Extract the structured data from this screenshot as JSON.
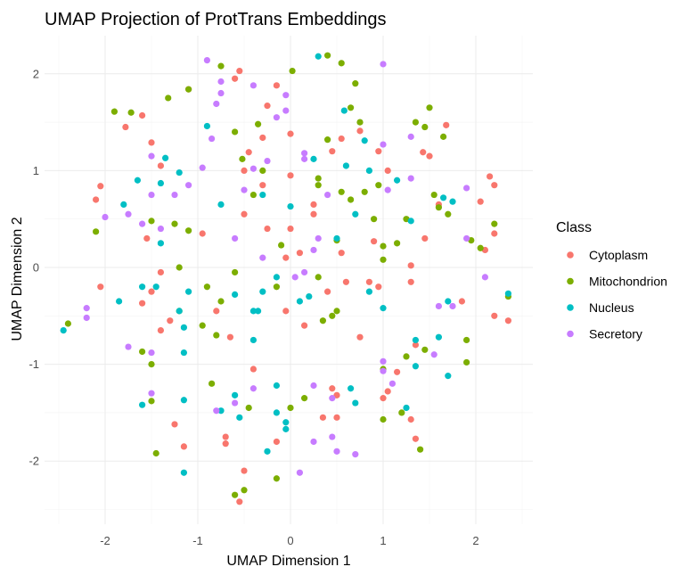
{
  "chart_data": {
    "type": "scatter",
    "title": "UMAP Projection of ProtTrans Embeddings",
    "xlabel": "UMAP Dimension 1",
    "ylabel": "UMAP Dimension 2",
    "xlim": [
      -2.5,
      2.4
    ],
    "ylim": [
      -2.5,
      2.25
    ],
    "x_ticks": [
      -2,
      -1,
      0,
      1,
      2
    ],
    "y_ticks": [
      2,
      1,
      0,
      -1,
      -2
    ],
    "grid": true,
    "legend": {
      "title": "Class",
      "position": "right"
    },
    "series": [
      {
        "name": "Cytoplasm",
        "color": "#F8766D",
        "points": [
          [
            -0.55,
            2.03
          ],
          [
            -0.6,
            1.95
          ],
          [
            -1.1,
            1.84
          ],
          [
            -1.6,
            1.57
          ],
          [
            -1.78,
            1.45
          ],
          [
            -1.5,
            1.29
          ],
          [
            -1.4,
            1.05
          ],
          [
            -2.05,
            0.84
          ],
          [
            -2.1,
            0.7
          ],
          [
            -0.15,
            1.88
          ],
          [
            0.0,
            1.38
          ],
          [
            -0.3,
            1.34
          ],
          [
            -0.45,
            1.19
          ],
          [
            -0.5,
            1.0
          ],
          [
            -0.3,
            0.85
          ],
          [
            0.0,
            0.95
          ],
          [
            0.25,
            0.65
          ],
          [
            0.25,
            0.55
          ],
          [
            0.45,
            1.2
          ],
          [
            0.55,
            1.33
          ],
          [
            0.75,
            1.41
          ],
          [
            0.95,
            1.2
          ],
          [
            1.05,
            1.0
          ],
          [
            1.43,
            1.19
          ],
          [
            1.5,
            1.15
          ],
          [
            1.68,
            1.47
          ],
          [
            2.15,
            0.94
          ],
          [
            2.2,
            0.85
          ],
          [
            1.6,
            0.65
          ],
          [
            2.05,
            0.68
          ],
          [
            2.2,
            0.35
          ],
          [
            2.1,
            0.18
          ],
          [
            1.85,
            -0.35
          ],
          [
            2.2,
            -0.5
          ],
          [
            2.35,
            -0.55
          ],
          [
            1.3,
            -0.15
          ],
          [
            0.6,
            -0.15
          ],
          [
            0.9,
            0.27
          ],
          [
            0.1,
            0.15
          ],
          [
            -0.05,
            0.1
          ],
          [
            -0.5,
            0.55
          ],
          [
            -0.25,
            0.4
          ],
          [
            -0.95,
            0.35
          ],
          [
            -1.55,
            0.3
          ],
          [
            -1.5,
            -0.25
          ],
          [
            -1.6,
            -0.37
          ],
          [
            -2.05,
            -0.2
          ],
          [
            -1.3,
            -0.55
          ],
          [
            -0.8,
            -0.45
          ],
          [
            -0.65,
            -0.72
          ],
          [
            -1.4,
            -0.65
          ],
          [
            -0.4,
            -1.05
          ],
          [
            -0.05,
            -0.45
          ],
          [
            0.15,
            -0.6
          ],
          [
            0.45,
            -1.25
          ],
          [
            0.5,
            -1.32
          ],
          [
            0.5,
            -1.55
          ],
          [
            0.35,
            -1.55
          ],
          [
            -0.15,
            -1.8
          ],
          [
            -0.7,
            -1.75
          ],
          [
            -0.7,
            -1.82
          ],
          [
            -1.25,
            -1.62
          ],
          [
            -1.15,
            -1.85
          ],
          [
            -0.5,
            -2.1
          ],
          [
            -0.55,
            -2.42
          ],
          [
            1.0,
            -1.35
          ],
          [
            1.05,
            -1.28
          ],
          [
            1.3,
            -1.57
          ],
          [
            1.35,
            -1.77
          ],
          [
            1.15,
            -1.08
          ],
          [
            1.35,
            -0.8
          ],
          [
            0.75,
            -0.72
          ],
          [
            0.85,
            -0.15
          ],
          [
            0.4,
            -0.25
          ],
          [
            -1.4,
            -0.05
          ],
          [
            0.0,
            0.4
          ],
          [
            0.55,
            0.15
          ],
          [
            0.95,
            -0.2
          ],
          [
            -0.25,
            1.67
          ],
          [
            1.3,
            0.02
          ],
          [
            1.45,
            0.3
          ]
        ]
      },
      {
        "name": "Mitochondrion",
        "color": "#7CAE00",
        "points": [
          [
            -1.9,
            1.61
          ],
          [
            -1.72,
            1.6
          ],
          [
            -1.32,
            1.75
          ],
          [
            -1.1,
            1.84
          ],
          [
            -0.75,
            2.08
          ],
          [
            -0.52,
            1.12
          ],
          [
            -0.6,
            1.4
          ],
          [
            -0.35,
            1.48
          ],
          [
            0.02,
            2.03
          ],
          [
            0.4,
            2.19
          ],
          [
            0.55,
            2.11
          ],
          [
            0.7,
            1.9
          ],
          [
            0.4,
            1.32
          ],
          [
            0.65,
            1.65
          ],
          [
            0.75,
            1.5
          ],
          [
            0.3,
            0.92
          ],
          [
            0.3,
            0.85
          ],
          [
            0.55,
            0.78
          ],
          [
            0.65,
            0.7
          ],
          [
            0.9,
            0.5
          ],
          [
            1.0,
            0.22
          ],
          [
            1.0,
            0.08
          ],
          [
            1.15,
            0.25
          ],
          [
            1.25,
            0.5
          ],
          [
            1.45,
            1.45
          ],
          [
            1.5,
            1.65
          ],
          [
            1.35,
            1.5
          ],
          [
            1.65,
            1.35
          ],
          [
            1.55,
            0.75
          ],
          [
            1.6,
            0.62
          ],
          [
            1.7,
            0.55
          ],
          [
            1.95,
            0.28
          ],
          [
            2.2,
            0.45
          ],
          [
            2.05,
            0.2
          ],
          [
            2.35,
            -0.3
          ],
          [
            1.9,
            -0.75
          ],
          [
            1.9,
            -0.98
          ],
          [
            1.45,
            -0.85
          ],
          [
            1.25,
            -0.92
          ],
          [
            1.0,
            -1.05
          ],
          [
            1.0,
            -1.57
          ],
          [
            1.4,
            -1.88
          ],
          [
            1.2,
            -1.5
          ],
          [
            0.5,
            -0.45
          ],
          [
            0.45,
            -0.5
          ],
          [
            0.3,
            -0.1
          ],
          [
            0.35,
            -0.55
          ],
          [
            0.15,
            -1.35
          ],
          [
            0.0,
            -1.45
          ],
          [
            -0.15,
            -2.18
          ],
          [
            -0.5,
            -2.3
          ],
          [
            -0.6,
            -2.35
          ],
          [
            -0.45,
            -1.45
          ],
          [
            -0.85,
            -1.2
          ],
          [
            -0.75,
            -0.35
          ],
          [
            -0.9,
            -0.2
          ],
          [
            -0.6,
            -0.05
          ],
          [
            -0.95,
            -0.6
          ],
          [
            -0.8,
            -0.7
          ],
          [
            -1.2,
            -0.45
          ],
          [
            -1.5,
            -1.0
          ],
          [
            -1.5,
            -1.38
          ],
          [
            -1.45,
            -1.92
          ],
          [
            -1.6,
            -0.87
          ],
          [
            -2.1,
            0.37
          ],
          [
            -2.4,
            -0.58
          ],
          [
            -1.1,
            0.38
          ],
          [
            -1.25,
            0.45
          ],
          [
            -1.5,
            0.48
          ],
          [
            -1.2,
            0.0
          ],
          [
            -0.15,
            -0.2
          ],
          [
            -0.1,
            0.23
          ],
          [
            0.5,
            0.28
          ],
          [
            0.8,
            0.78
          ],
          [
            0.95,
            0.85
          ],
          [
            -0.4,
            0.75
          ],
          [
            -0.3,
            1.0
          ]
        ]
      },
      {
        "name": "Nucleus",
        "color": "#00BFC4",
        "points": [
          [
            0.3,
            2.18
          ],
          [
            0.58,
            1.62
          ],
          [
            0.8,
            1.31
          ],
          [
            0.85,
            1.0
          ],
          [
            0.6,
            1.05
          ],
          [
            0.25,
            1.12
          ],
          [
            -0.9,
            1.46
          ],
          [
            -1.35,
            1.13
          ],
          [
            -1.2,
            0.98
          ],
          [
            -1.4,
            0.87
          ],
          [
            -1.8,
            0.65
          ],
          [
            -1.65,
            0.9
          ],
          [
            -0.75,
            0.65
          ],
          [
            -0.3,
            0.75
          ],
          [
            0.0,
            0.63
          ],
          [
            0.7,
            0.55
          ],
          [
            1.15,
            0.9
          ],
          [
            1.3,
            0.48
          ],
          [
            1.65,
            0.72
          ],
          [
            1.75,
            0.68
          ],
          [
            2.35,
            -0.27
          ],
          [
            1.7,
            -0.35
          ],
          [
            1.6,
            -0.72
          ],
          [
            1.35,
            -0.75
          ],
          [
            1.35,
            -1.02
          ],
          [
            1.7,
            -1.12
          ],
          [
            1.25,
            -1.45
          ],
          [
            0.7,
            -1.4
          ],
          [
            0.65,
            -1.25
          ],
          [
            0.85,
            -0.25
          ],
          [
            1.0,
            -0.42
          ],
          [
            0.2,
            -0.3
          ],
          [
            0.1,
            -0.35
          ],
          [
            -0.15,
            -0.1
          ],
          [
            -0.3,
            -0.25
          ],
          [
            -0.35,
            -0.45
          ],
          [
            -0.4,
            -0.75
          ],
          [
            -0.6,
            -0.28
          ],
          [
            -1.1,
            -0.25
          ],
          [
            -1.2,
            -0.45
          ],
          [
            -1.15,
            -0.62
          ],
          [
            -1.45,
            -0.2
          ],
          [
            -1.6,
            -0.2
          ],
          [
            -1.85,
            -0.35
          ],
          [
            -2.45,
            -0.65
          ],
          [
            -1.15,
            -0.88
          ],
          [
            -1.15,
            -1.37
          ],
          [
            -0.6,
            -1.32
          ],
          [
            -0.75,
            -1.48
          ],
          [
            -0.55,
            -1.55
          ],
          [
            -0.15,
            -1.22
          ],
          [
            -0.15,
            -1.5
          ],
          [
            -0.05,
            -1.6
          ],
          [
            -0.05,
            -1.67
          ],
          [
            -0.25,
            -1.9
          ],
          [
            -1.15,
            -2.12
          ],
          [
            -1.6,
            -1.42
          ],
          [
            -1.4,
            0.25
          ],
          [
            -0.4,
            -0.45
          ],
          [
            0.5,
            0.3
          ]
        ]
      },
      {
        "name": "Secretory",
        "color": "#C77CFF",
        "points": [
          [
            -0.9,
            2.14
          ],
          [
            -0.75,
            1.92
          ],
          [
            -0.75,
            1.8
          ],
          [
            -0.8,
            1.69
          ],
          [
            -0.4,
            1.88
          ],
          [
            -0.05,
            1.78
          ],
          [
            -0.05,
            1.62
          ],
          [
            -0.15,
            1.55
          ],
          [
            -0.85,
            1.33
          ],
          [
            -0.95,
            1.03
          ],
          [
            -0.4,
            1.02
          ],
          [
            -0.5,
            0.8
          ],
          [
            -0.25,
            1.1
          ],
          [
            0.15,
            1.12
          ],
          [
            0.4,
            0.75
          ],
          [
            -1.5,
            1.15
          ],
          [
            -1.1,
            0.85
          ],
          [
            -1.25,
            0.75
          ],
          [
            -1.5,
            0.75
          ],
          [
            -1.4,
            0.4
          ],
          [
            -1.6,
            0.45
          ],
          [
            -1.75,
            0.55
          ],
          [
            -2.0,
            0.52
          ],
          [
            -2.2,
            -0.42
          ],
          [
            -2.2,
            -0.52
          ],
          [
            -1.75,
            -0.82
          ],
          [
            -1.5,
            -0.88
          ],
          [
            -1.5,
            -1.3
          ],
          [
            -0.6,
            -1.4
          ],
          [
            -0.8,
            -1.48
          ],
          [
            -0.4,
            -1.25
          ],
          [
            0.25,
            -1.22
          ],
          [
            0.45,
            -1.35
          ],
          [
            0.45,
            -1.75
          ],
          [
            0.7,
            -1.93
          ],
          [
            0.5,
            -1.9
          ],
          [
            0.1,
            -2.12
          ],
          [
            0.25,
            -1.8
          ],
          [
            1.0,
            -0.97
          ],
          [
            1.0,
            -1.07
          ],
          [
            1.1,
            -1.2
          ],
          [
            1.55,
            -0.9
          ],
          [
            1.6,
            -0.4
          ],
          [
            1.75,
            -0.4
          ],
          [
            1.9,
            0.3
          ],
          [
            2.1,
            -0.1
          ],
          [
            1.9,
            0.82
          ],
          [
            1.3,
            0.92
          ],
          [
            1.0,
            1.27
          ],
          [
            1.3,
            1.35
          ],
          [
            1.05,
            0.8
          ],
          [
            1.0,
            2.1
          ],
          [
            0.15,
            1.18
          ],
          [
            0.3,
            0.3
          ],
          [
            0.25,
            0.18
          ],
          [
            0.15,
            -0.05
          ],
          [
            -0.6,
            0.3
          ],
          [
            -0.3,
            0.1
          ],
          [
            0.05,
            -0.1
          ]
        ]
      }
    ]
  }
}
